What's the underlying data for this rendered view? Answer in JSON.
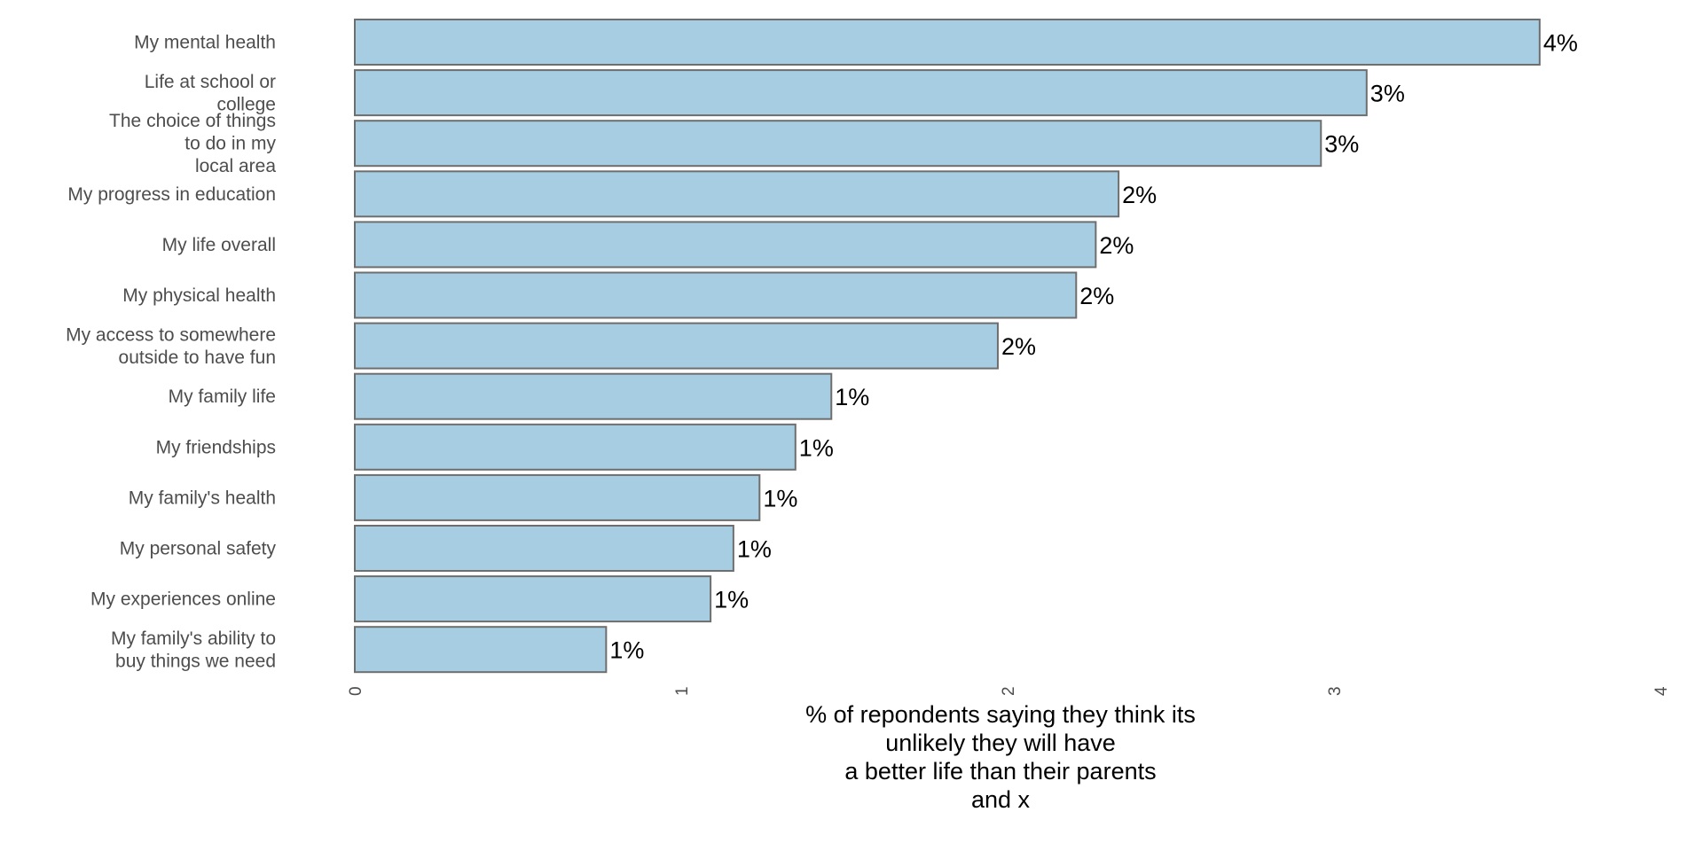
{
  "chart_data": {
    "type": "bar",
    "orientation": "horizontal",
    "categories": [
      "My mental health",
      "Life at school or college",
      "The choice of things to do in my local area",
      "My progress in education",
      "My life overall",
      "My physical health",
      "My access to somewhere outside to have fun",
      "My family life",
      "My friendships",
      "My family's health",
      "My personal safety",
      "My experiences online",
      "My family's ability to buy things we need"
    ],
    "category_lines": [
      [
        "My mental health"
      ],
      [
        "Life at school or",
        "college"
      ],
      [
        "The choice of things",
        "to do in my",
        "local area"
      ],
      [
        "My progress in education"
      ],
      [
        "My life overall"
      ],
      [
        "My physical health"
      ],
      [
        "My access to somewhere",
        "outside to have fun"
      ],
      [
        "My family life"
      ],
      [
        "My friendships"
      ],
      [
        "My family's health"
      ],
      [
        "My personal safety"
      ],
      [
        "My experiences online"
      ],
      [
        "My family's ability to",
        "buy things we need"
      ]
    ],
    "values": [
      3.63,
      3.1,
      2.96,
      2.34,
      2.27,
      2.21,
      1.97,
      1.46,
      1.35,
      1.24,
      1.16,
      1.09,
      0.77
    ],
    "value_labels": [
      "4%",
      "3%",
      "3%",
      "2%",
      "2%",
      "2%",
      "2%",
      "1%",
      "1%",
      "1%",
      "1%",
      "1%",
      "1%"
    ],
    "xlabel_lines": [
      "% of repondents saying they think its",
      "unlikely they will have",
      "a better life than their parents",
      "and x"
    ],
    "xlim": [
      0,
      4
    ],
    "xticks": [
      0,
      1,
      2,
      3,
      4
    ],
    "xtick_labels": [
      "0",
      "1",
      "2",
      "3",
      "4"
    ],
    "grid": false,
    "legend": "none",
    "bar_color": "#a6cde2",
    "bar_edge_color": "#6e6e6e"
  }
}
